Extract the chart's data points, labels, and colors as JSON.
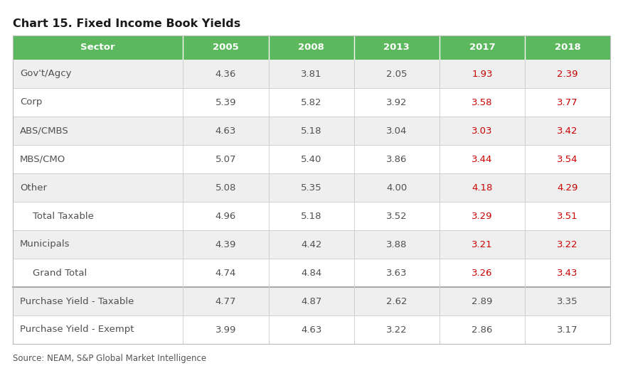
{
  "title": "Chart 15. Fixed Income Book Yields",
  "source": "Source: NEAM, S&P Global Market Intelligence",
  "columns": [
    "Sector",
    "2005",
    "2008",
    "2013",
    "2017",
    "2018"
  ],
  "header_bg": "#5bb85d",
  "header_text_color": "#ffffff",
  "rows": [
    {
      "sector": "Gov't/Agcy",
      "values": [
        "4.36",
        "3.81",
        "2.05",
        "1.93",
        "2.39"
      ],
      "bold": false,
      "indent": false,
      "red_cols": [
        3,
        4
      ],
      "bg": "#efefef"
    },
    {
      "sector": "Corp",
      "values": [
        "5.39",
        "5.82",
        "3.92",
        "3.58",
        "3.77"
      ],
      "bold": false,
      "indent": false,
      "red_cols": [
        3,
        4
      ],
      "bg": "#ffffff"
    },
    {
      "sector": "ABS/CMBS",
      "values": [
        "4.63",
        "5.18",
        "3.04",
        "3.03",
        "3.42"
      ],
      "bold": false,
      "indent": false,
      "red_cols": [
        3,
        4
      ],
      "bg": "#efefef"
    },
    {
      "sector": "MBS/CMO",
      "values": [
        "5.07",
        "5.40",
        "3.86",
        "3.44",
        "3.54"
      ],
      "bold": false,
      "indent": false,
      "red_cols": [
        3,
        4
      ],
      "bg": "#ffffff"
    },
    {
      "sector": "Other",
      "values": [
        "5.08",
        "5.35",
        "4.00",
        "4.18",
        "4.29"
      ],
      "bold": false,
      "indent": false,
      "red_cols": [
        3,
        4
      ],
      "bg": "#efefef"
    },
    {
      "sector": "Total Taxable",
      "values": [
        "4.96",
        "5.18",
        "3.52",
        "3.29",
        "3.51"
      ],
      "bold": false,
      "indent": true,
      "red_cols": [
        3,
        4
      ],
      "bg": "#ffffff"
    },
    {
      "sector": "Municipals",
      "values": [
        "4.39",
        "4.42",
        "3.88",
        "3.21",
        "3.22"
      ],
      "bold": false,
      "indent": false,
      "red_cols": [
        3,
        4
      ],
      "bg": "#efefef"
    },
    {
      "sector": "Grand Total",
      "values": [
        "4.74",
        "4.84",
        "3.63",
        "3.26",
        "3.43"
      ],
      "bold": false,
      "indent": true,
      "red_cols": [
        3,
        4
      ],
      "bg": "#ffffff"
    },
    {
      "sector": "Purchase Yield - Taxable",
      "values": [
        "4.77",
        "4.87",
        "2.62",
        "2.89",
        "3.35"
      ],
      "bold": false,
      "indent": false,
      "red_cols": [],
      "bg": "#efefef",
      "top_border": true
    },
    {
      "sector": "Purchase Yield - Exempt",
      "values": [
        "3.99",
        "4.63",
        "3.22",
        "2.86",
        "3.17"
      ],
      "bold": false,
      "indent": false,
      "red_cols": [],
      "bg": "#ffffff"
    }
  ],
  "normal_text_color": "#505050",
  "red_text_color": "#cc0000",
  "title_fontsize": 11.5,
  "header_fontsize": 9.5,
  "cell_fontsize": 9.5,
  "source_fontsize": 8.5
}
